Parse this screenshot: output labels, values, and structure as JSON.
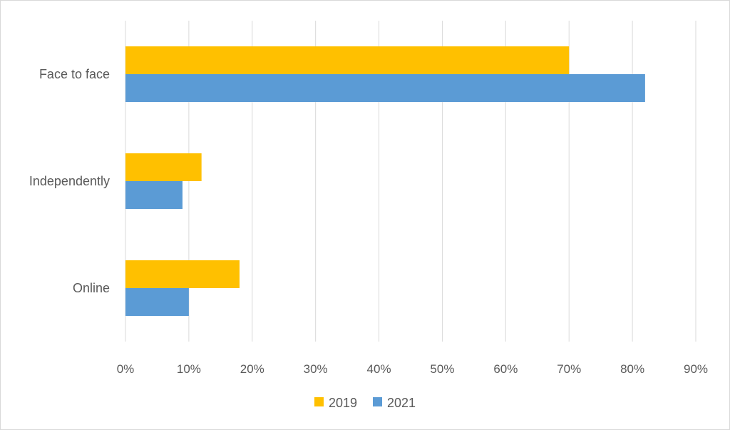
{
  "chart_data": {
    "type": "bar",
    "orientation": "horizontal",
    "title": "",
    "xlabel": "",
    "ylabel": "",
    "categories": [
      "Face to face",
      "Independently",
      "Online"
    ],
    "series": [
      {
        "name": "2019",
        "color": "#ffc000",
        "values": [
          70,
          12,
          18
        ]
      },
      {
        "name": "2021",
        "color": "#5b9bd5",
        "values": [
          82,
          9,
          10
        ]
      }
    ],
    "xlim": [
      0,
      90
    ],
    "x_ticks": [
      0,
      10,
      20,
      30,
      40,
      50,
      60,
      70,
      80,
      90
    ],
    "x_tick_labels": [
      "0%",
      "10%",
      "20%",
      "30%",
      "40%",
      "50%",
      "60%",
      "70%",
      "80%",
      "90%"
    ],
    "grid": "vertical",
    "legend": "bottom"
  }
}
